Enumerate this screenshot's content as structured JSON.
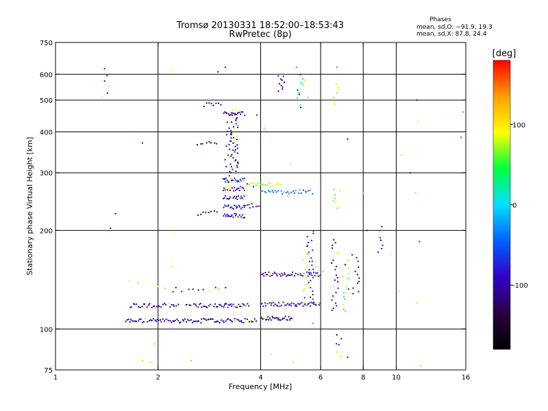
{
  "chart_data": {
    "type": "scatter",
    "title": "Tromsø 20130331 18:52:00–18:53:43",
    "subtitle": "RwPretec (8p)",
    "xlabel": "Frequency [MHz]",
    "ylabel": "Stationary phase Virtual Height [km]",
    "x_scale": "log",
    "y_scale": "log",
    "xlim": [
      1,
      16
    ],
    "ylim": [
      75,
      750
    ],
    "x_ticks": [
      1,
      2,
      4,
      6,
      8,
      10,
      16
    ],
    "y_ticks": [
      75,
      100,
      200,
      300,
      400,
      500,
      600,
      750
    ],
    "x_grid": [
      2,
      4,
      6,
      8,
      10
    ],
    "y_grid": [
      100,
      200,
      300,
      400,
      500,
      600
    ],
    "grid": true,
    "info_title": "Phases",
    "info_lines": [
      "mean, sd,O: −91.9, 19.3",
      "mean, sd,X:  87.8, 24.4"
    ],
    "colorbar": {
      "label": "[deg]",
      "range": [
        -180,
        180
      ],
      "ticks": [
        100,
        0,
        -100
      ],
      "colors": [
        "#000000",
        "#2a0040",
        "#3300cc",
        "#0060ff",
        "#00e0ff",
        "#00ff40",
        "#ffff00",
        "#ffa000",
        "#ff0000"
      ]
    },
    "traces": [
      {
        "x0": 1.6,
        "x1": 3.9,
        "y": 106,
        "phase": -110,
        "n": 95
      },
      {
        "x0": 4.0,
        "x1": 5.0,
        "y": 108,
        "phase": -105,
        "n": 30
      },
      {
        "x0": 1.65,
        "x1": 2.3,
        "y": 118,
        "phase": -110,
        "n": 30
      },
      {
        "x0": 2.4,
        "x1": 3.1,
        "y": 118,
        "phase": -108,
        "n": 28
      },
      {
        "x0": 3.1,
        "x1": 3.7,
        "y": 118,
        "phase": -105,
        "n": 24
      },
      {
        "x0": 4.0,
        "x1": 6.0,
        "y": 119,
        "phase": -90,
        "n": 50
      },
      {
        "x0": 4.0,
        "x1": 6.0,
        "y": 147,
        "phase": -95,
        "n": 55
      },
      {
        "x0": 2.1,
        "x1": 3.2,
        "y": 132,
        "phase": -100,
        "n": 12
      },
      {
        "x0": 3.1,
        "x1": 3.6,
        "y": 222,
        "phase": -105,
        "n": 20
      },
      {
        "x0": 3.1,
        "x1": 3.6,
        "y": 236,
        "phase": -80,
        "n": 20
      },
      {
        "x0": 3.1,
        "x1": 3.6,
        "y": 252,
        "phase": -100,
        "n": 22
      },
      {
        "x0": 3.1,
        "x1": 3.6,
        "y": 268,
        "phase": -95,
        "n": 22
      },
      {
        "x0": 3.1,
        "x1": 3.6,
        "y": 285,
        "phase": -60,
        "n": 24
      },
      {
        "x0": 3.6,
        "x1": 4.6,
        "y": 276,
        "phase": 80,
        "n": 24
      },
      {
        "x0": 4.0,
        "x1": 5.7,
        "y": 262,
        "phase": -40,
        "n": 30
      },
      {
        "x0": 2.6,
        "x1": 3.0,
        "y": 368,
        "phase": -110,
        "n": 8
      },
      {
        "x0": 3.1,
        "x1": 3.6,
        "y": 455,
        "phase": -115,
        "n": 18
      },
      {
        "x0": 2.7,
        "x1": 3.1,
        "y": 485,
        "phase": -120,
        "n": 8
      },
      {
        "x0": 2.6,
        "x1": 3.0,
        "y": 226,
        "phase": -110,
        "n": 8
      },
      {
        "x0": 3.6,
        "x1": 4.0,
        "y": 238,
        "phase": -100,
        "n": 10
      }
    ],
    "columns": [
      {
        "x": 3.35,
        "y0": 300,
        "y1": 470,
        "phase": -110,
        "n": 45
      },
      {
        "x": 3.2,
        "y0": 280,
        "y1": 430,
        "phase": -105,
        "n": 18
      },
      {
        "x": 5.6,
        "y0": 120,
        "y1": 200,
        "phase": -100,
        "n": 28
      },
      {
        "x": 5.4,
        "y0": 112,
        "y1": 175,
        "phase": 80,
        "n": 16
      },
      {
        "x": 6.6,
        "y0": 112,
        "y1": 190,
        "phase": -110,
        "n": 24
      },
      {
        "x": 7.1,
        "y0": 112,
        "y1": 165,
        "phase": 60,
        "n": 16
      },
      {
        "x": 7.6,
        "y0": 125,
        "y1": 170,
        "phase": -120,
        "n": 12
      },
      {
        "x": 4.6,
        "y0": 530,
        "y1": 600,
        "phase": -110,
        "n": 10
      },
      {
        "x": 5.25,
        "y0": 470,
        "y1": 610,
        "phase": 40,
        "n": 10
      },
      {
        "x": 6.6,
        "y0": 480,
        "y1": 560,
        "phase": 90,
        "n": 8
      },
      {
        "x": 8.9,
        "y0": 170,
        "y1": 210,
        "phase": -100,
        "n": 8
      },
      {
        "x": 6.8,
        "y0": 82,
        "y1": 98,
        "phase": -110,
        "n": 6
      },
      {
        "x": 1.4,
        "y0": 500,
        "y1": 630,
        "phase": -110,
        "n": 6
      },
      {
        "x": 6.7,
        "y0": 230,
        "y1": 270,
        "phase": 70,
        "n": 8
      }
    ],
    "scattered": [
      {
        "x": 1.5,
        "y": 225,
        "phase": -100
      },
      {
        "x": 1.45,
        "y": 203,
        "phase": -110
      },
      {
        "x": 1.8,
        "y": 370,
        "phase": -110
      },
      {
        "x": 2.2,
        "y": 615,
        "phase": 90
      },
      {
        "x": 3.0,
        "y": 610,
        "phase": -100
      },
      {
        "x": 3.15,
        "y": 630,
        "phase": -110
      },
      {
        "x": 5.1,
        "y": 630,
        "phase": 150
      },
      {
        "x": 6.7,
        "y": 630,
        "phase": -20
      },
      {
        "x": 7.2,
        "y": 380,
        "phase": -110
      },
      {
        "x": 11.5,
        "y": 500,
        "phase": -110
      },
      {
        "x": 11.0,
        "y": 300,
        "phase": -110
      },
      {
        "x": 11.6,
        "y": 430,
        "phase": 110
      },
      {
        "x": 11.4,
        "y": 260,
        "phase": 120
      },
      {
        "x": 15.7,
        "y": 460,
        "phase": 150
      },
      {
        "x": 15.5,
        "y": 385,
        "phase": -40
      },
      {
        "x": 11.7,
        "y": 185,
        "phase": -60
      },
      {
        "x": 11.5,
        "y": 120,
        "phase": 110
      },
      {
        "x": 11.8,
        "y": 77,
        "phase": 130
      },
      {
        "x": 1.65,
        "y": 140,
        "phase": 100
      },
      {
        "x": 1.75,
        "y": 138,
        "phase": 110
      },
      {
        "x": 1.95,
        "y": 90,
        "phase": 110
      },
      {
        "x": 2.0,
        "y": 135,
        "phase": 100
      },
      {
        "x": 2.2,
        "y": 155,
        "phase": 100
      },
      {
        "x": 2.25,
        "y": 195,
        "phase": 90
      },
      {
        "x": 1.8,
        "y": 80,
        "phase": 120
      },
      {
        "x": 2.5,
        "y": 80,
        "phase": 130
      },
      {
        "x": 1.9,
        "y": 79,
        "phase": 110
      },
      {
        "x": 4.8,
        "y": 255,
        "phase": 110
      },
      {
        "x": 4.9,
        "y": 320,
        "phase": 100
      },
      {
        "x": 4.1,
        "y": 410,
        "phase": 60
      },
      {
        "x": 3.9,
        "y": 450,
        "phase": -80
      },
      {
        "x": 5.4,
        "y": 575,
        "phase": 110
      },
      {
        "x": 5.5,
        "y": 510,
        "phase": 120
      },
      {
        "x": 8.2,
        "y": 200,
        "phase": -100
      },
      {
        "x": 8.0,
        "y": 260,
        "phase": 60
      },
      {
        "x": 10.2,
        "y": 130,
        "phase": 110
      },
      {
        "x": 10.3,
        "y": 340,
        "phase": 100
      },
      {
        "x": 9.6,
        "y": 170,
        "phase": 100
      },
      {
        "x": 4.3,
        "y": 84,
        "phase": 100
      },
      {
        "x": 5.0,
        "y": 79,
        "phase": 110
      },
      {
        "x": 7.2,
        "y": 82,
        "phase": -110
      },
      {
        "x": 5.7,
        "y": 104,
        "phase": 150
      },
      {
        "x": 6.1,
        "y": 150,
        "phase": 60
      },
      {
        "x": 5.8,
        "y": 155,
        "phase": 110
      }
    ]
  }
}
